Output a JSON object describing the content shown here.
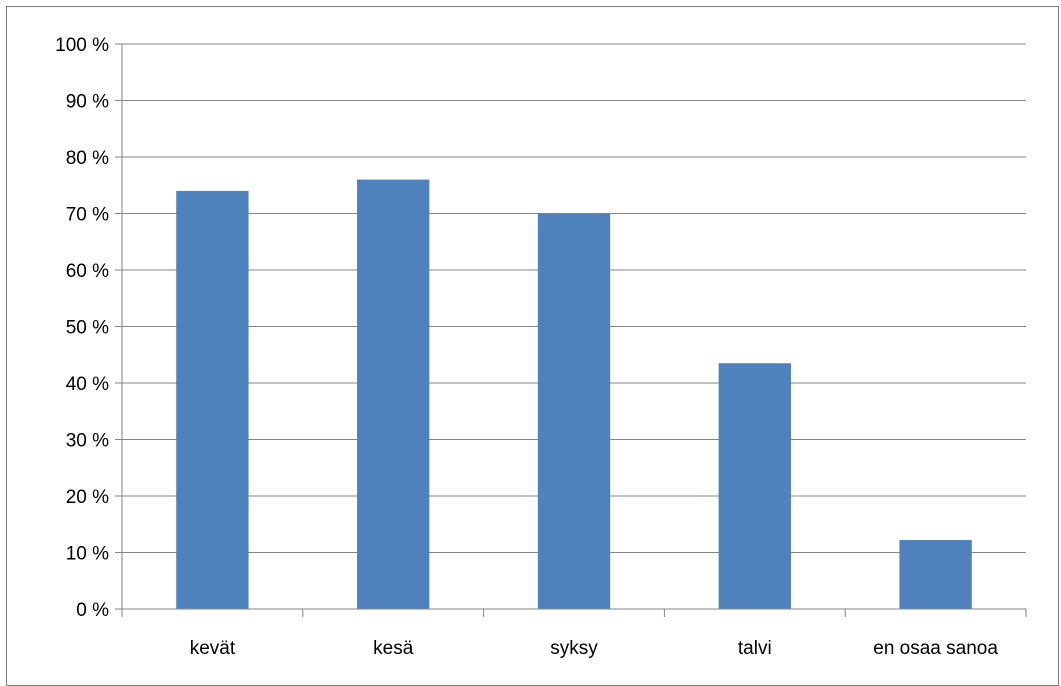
{
  "chart_data": {
    "type": "bar",
    "title": "",
    "xlabel": "",
    "ylabel": "",
    "categories": [
      "kevät",
      "kesä",
      "syksy",
      "talvi",
      "en osaa sanoa"
    ],
    "values": [
      74,
      76,
      70,
      43.5,
      12.2
    ],
    "ylim": [
      0,
      100
    ],
    "yticks": [
      0,
      10,
      20,
      30,
      40,
      50,
      60,
      70,
      80,
      90,
      100
    ],
    "ytick_labels": [
      "0 %",
      "10 %",
      "20 %",
      "30 %",
      "40 %",
      "50 %",
      "60 %",
      "70 %",
      "80 %",
      "90 %",
      "100 %"
    ],
    "grid": true,
    "legend": "none",
    "bar_color": "#4F81BD",
    "grid_color": "#868686"
  }
}
